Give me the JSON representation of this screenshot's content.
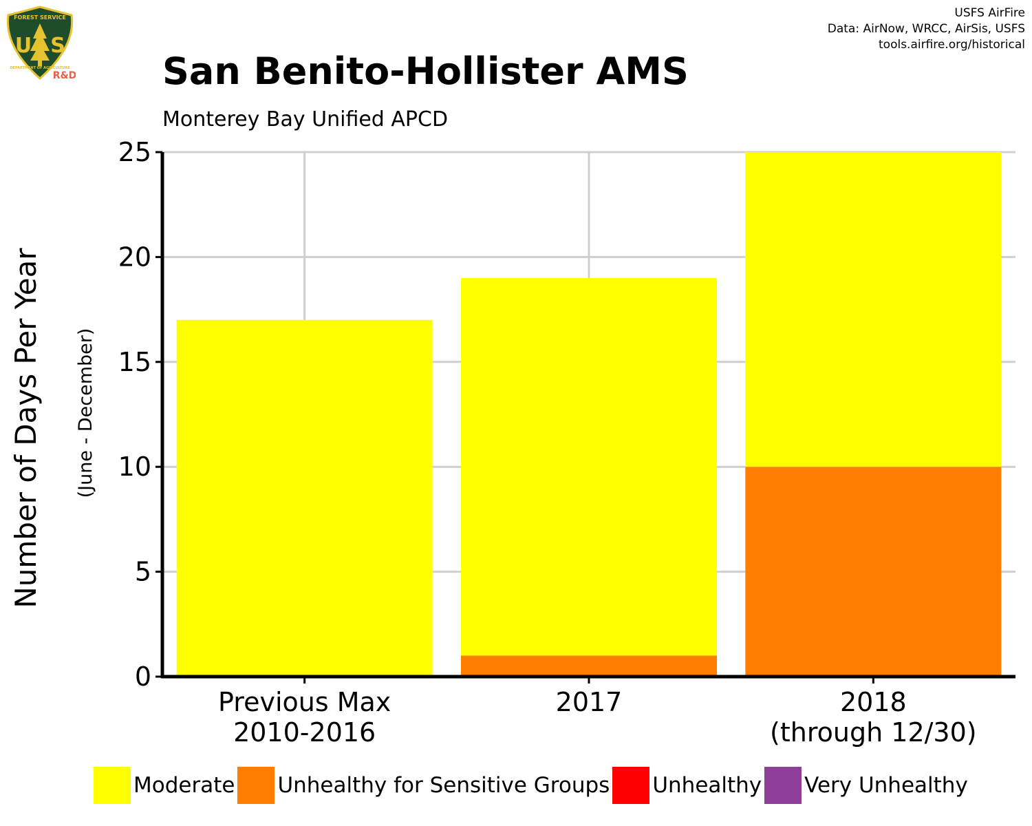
{
  "credits": {
    "line1": "USFS AirFire",
    "line2": "Data: AirNow, WRCC, AirSis, USFS",
    "line3": "tools.airfire.org/historical"
  },
  "logo": {
    "top_text": "FOREST SERVICE",
    "letters": "U S",
    "bottom_text": "DEPARTMENT OF AGRICULTURE",
    "badge": "R&D",
    "colors": {
      "shield": "#1f4d2b",
      "gold": "#e6c22e",
      "badge": "#e8604a"
    }
  },
  "chart_data": {
    "type": "bar",
    "stacked": true,
    "title": "San Benito-Hollister AMS",
    "subtitle": "Monterey Bay Unified APCD",
    "ylabel": "Number of Days Per Year",
    "ylabel_secondary": "(June - December)",
    "xlabel": "",
    "ylim": [
      0,
      25
    ],
    "yticks": [
      0,
      5,
      10,
      15,
      20,
      25
    ],
    "grid": true,
    "legend_position": "bottom",
    "categories": [
      [
        "Previous Max",
        "2010-2016"
      ],
      [
        "2017"
      ],
      [
        "2018",
        "(through 12/30)"
      ]
    ],
    "series": [
      {
        "name": "Unhealthy for Sensitive Groups",
        "color": "#ff7e00",
        "values": [
          0,
          1,
          10
        ]
      },
      {
        "name": "Moderate",
        "color": "#ffff00",
        "values": [
          17,
          18,
          15
        ]
      },
      {
        "name": "Unhealthy",
        "color": "#ff0000",
        "values": [
          0,
          0,
          0
        ]
      },
      {
        "name": "Very Unhealthy",
        "color": "#8f3f97",
        "values": [
          0,
          0,
          0
        ]
      }
    ],
    "legend": [
      {
        "name": "Moderate",
        "color": "#ffff00"
      },
      {
        "name": "Unhealthy for Sensitive Groups",
        "color": "#ff7e00"
      },
      {
        "name": "Unhealthy",
        "color": "#ff0000"
      },
      {
        "name": "Very Unhealthy",
        "color": "#8f3f97"
      }
    ]
  }
}
